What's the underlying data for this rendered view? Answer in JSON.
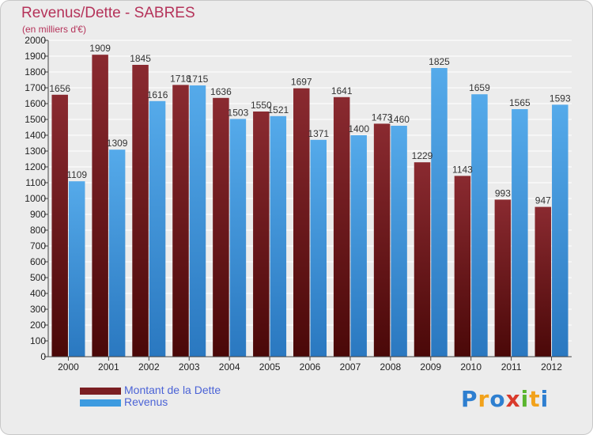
{
  "chart_data": {
    "type": "bar",
    "title": "Revenus/Dette - SABRES",
    "subtitle": "(en milliers d'€)",
    "categories": [
      "2000",
      "2001",
      "2002",
      "2003",
      "2004",
      "2005",
      "2006",
      "2007",
      "2008",
      "2009",
      "2010",
      "2011",
      "2012"
    ],
    "series": [
      {
        "name": "Montant de la Dette",
        "color": "#7a1e22",
        "values": [
          1656,
          1909,
          1845,
          1718,
          1636,
          1550,
          1697,
          1641,
          1473,
          1229,
          1143,
          993,
          947
        ]
      },
      {
        "name": "Revenus",
        "color": "#3d9be0",
        "values": [
          1109,
          1309,
          1616,
          1715,
          1503,
          1521,
          1371,
          1400,
          1460,
          1825,
          1659,
          1565,
          1593
        ]
      }
    ],
    "ylim": [
      0,
      2000
    ],
    "ytick_step": 100,
    "grid": true,
    "legend_position": "bottom-left"
  },
  "logo": {
    "letters": [
      {
        "ch": "P",
        "color": "#2e7fd0"
      },
      {
        "ch": "r",
        "color": "#f2a21b"
      },
      {
        "ch": "o",
        "color": "#2e7fd0"
      },
      {
        "ch": "x",
        "color": "#d93a2b"
      },
      {
        "ch": "i",
        "color": "#5ab52e"
      },
      {
        "ch": "t",
        "color": "#f2a21b"
      },
      {
        "ch": "i",
        "color": "#2e7fd0"
      }
    ]
  }
}
